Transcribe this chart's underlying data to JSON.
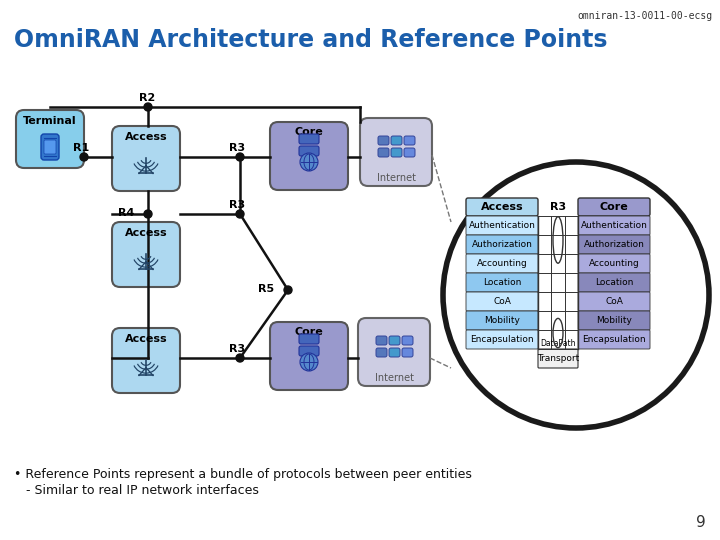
{
  "title": "OmniRAN Architecture and Reference Points",
  "header_text": "omniran-13-0011-00-ecsg",
  "bg_color": "#ffffff",
  "title_color": "#1B5EAB",
  "bullet1": "• Reference Points represent a bundle of protocols between peer entities",
  "bullet2": "   - Similar to real IP network interfaces",
  "page_number": "9",
  "terminal_color": "#87CEEB",
  "access_color": "#ADD8F0",
  "core_color": "#9999CC",
  "internet_color": "#C8C8E0",
  "table_acc_header": "#ADD8F0",
  "table_core_header": "#9999CC",
  "table_acc_rows": [
    "#C6E8FF",
    "#8EC8F0",
    "#C6E8FF",
    "#8EC8F0",
    "#C6E8FF",
    "#8EC8F0",
    "#C6E8FF"
  ],
  "table_core_rows": [
    "#AAAADD",
    "#8888BB",
    "#AAAADD",
    "#8888BB",
    "#AAAADD",
    "#8888BB",
    "#AAAADD"
  ],
  "table_rows": [
    "Authentication",
    "Authorization",
    "Accounting",
    "Location",
    "CoA",
    "Mobility",
    "Encapsulation"
  ],
  "table_transport": "Transport",
  "table_datapath": "DataPath"
}
